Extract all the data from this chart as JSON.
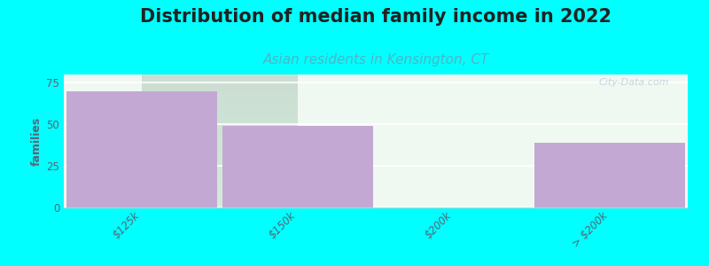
{
  "title": "Distribution of median family income in 2022",
  "subtitle": "Asian residents in Kensington, CT",
  "categories": [
    "$125k",
    "$150k",
    "$200k",
    "> $200k"
  ],
  "values": [
    70,
    49,
    0,
    39
  ],
  "bar_colors": [
    "#c4a8d4",
    "#c4a8d4",
    "#ddecd4",
    "#c4a8d4"
  ],
  "ylabel": "families",
  "ylim": [
    0,
    80
  ],
  "yticks": [
    0,
    25,
    50,
    75
  ],
  "background_color": "#00ffff",
  "plot_bg_top": "#e8f5ec",
  "plot_bg_bottom": "#f8faf8",
  "title_fontsize": 15,
  "subtitle_fontsize": 11,
  "subtitle_color": "#4ab8c4",
  "watermark": "City-Data.com"
}
